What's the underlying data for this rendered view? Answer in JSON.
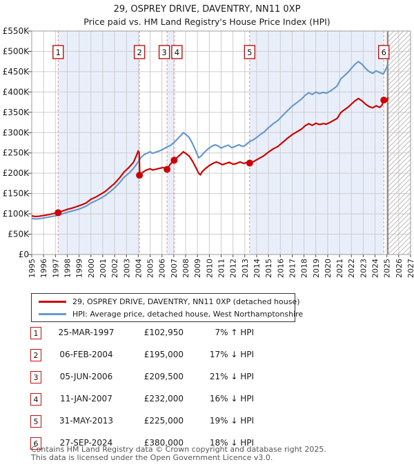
{
  "page": {
    "title": "29, OSPREY DRIVE, DAVENTRY, NN11 0XP",
    "subtitle": "Price paid vs. HM Land Registry's House Price Index (HPI)"
  },
  "chart_data": {
    "type": "line",
    "title": "29, OSPREY DRIVE, DAVENTRY, NN11 0XP",
    "subtitle": "Price paid vs. HM Land Registry's House Price Index (HPI)",
    "x_axis": {
      "tick_years": [
        1995,
        1996,
        1997,
        1998,
        1999,
        2000,
        2001,
        2002,
        2003,
        2004,
        2005,
        2006,
        2007,
        2008,
        2009,
        2010,
        2011,
        2012,
        2013,
        2014,
        2015,
        2016,
        2017,
        2018,
        2019,
        2020,
        2021,
        2022,
        2023,
        2024,
        2025,
        2026,
        2027
      ],
      "range": [
        1995,
        2027
      ]
    },
    "y_axis": {
      "unit": "GBP",
      "range_thousands": [
        0,
        550
      ],
      "ticks": [
        {
          "v": 0,
          "label": "£0"
        },
        {
          "v": 50,
          "label": "£50K"
        },
        {
          "v": 100,
          "label": "£100K"
        },
        {
          "v": 150,
          "label": "£150K"
        },
        {
          "v": 200,
          "label": "£200K"
        },
        {
          "v": 250,
          "label": "£250K"
        },
        {
          "v": 300,
          "label": "£300K"
        },
        {
          "v": 350,
          "label": "£350K"
        },
        {
          "v": 400,
          "label": "£400K"
        },
        {
          "v": 450,
          "label": "£450K"
        },
        {
          "v": 500,
          "label": "£500K"
        },
        {
          "v": 550,
          "label": "£550K"
        }
      ]
    },
    "series": [
      {
        "id": "hpi",
        "label": "HPI: Average price, detached house, West Northamptonshire",
        "color": "#6699cc",
        "points_year_gbpk": [
          [
            1995.0,
            89
          ],
          [
            1995.3,
            87.5
          ],
          [
            1995.6,
            88
          ],
          [
            1996.0,
            90
          ],
          [
            1996.4,
            92
          ],
          [
            1996.8,
            94
          ],
          [
            1997.23,
            96.2
          ],
          [
            1997.6,
            100
          ],
          [
            1998.0,
            104
          ],
          [
            1998.4,
            107
          ],
          [
            1998.8,
            110
          ],
          [
            1999.2,
            114
          ],
          [
            1999.6,
            119
          ],
          [
            2000.0,
            127
          ],
          [
            2000.4,
            132
          ],
          [
            2000.8,
            138
          ],
          [
            2001.2,
            145
          ],
          [
            2001.6,
            154
          ],
          [
            2002.0,
            164
          ],
          [
            2002.4,
            176
          ],
          [
            2002.8,
            190
          ],
          [
            2003.2,
            200
          ],
          [
            2003.6,
            212
          ],
          [
            2004.0,
            228
          ],
          [
            2004.2,
            238
          ],
          [
            2004.5,
            246
          ],
          [
            2004.8,
            250
          ],
          [
            2005.0,
            253
          ],
          [
            2005.2,
            249
          ],
          [
            2005.5,
            252
          ],
          [
            2005.8,
            255
          ],
          [
            2006.1,
            259
          ],
          [
            2006.43,
            265
          ],
          [
            2006.7,
            268
          ],
          [
            2007.03,
            276
          ],
          [
            2007.3,
            284
          ],
          [
            2007.6,
            293
          ],
          [
            2007.8,
            300
          ],
          [
            2008.0,
            296
          ],
          [
            2008.3,
            288
          ],
          [
            2008.6,
            272
          ],
          [
            2008.9,
            252
          ],
          [
            2009.1,
            238
          ],
          [
            2009.3,
            242
          ],
          [
            2009.6,
            252
          ],
          [
            2009.9,
            260
          ],
          [
            2010.2,
            266
          ],
          [
            2010.5,
            270
          ],
          [
            2010.8,
            266
          ],
          [
            2011.0,
            262
          ],
          [
            2011.3,
            266
          ],
          [
            2011.6,
            269
          ],
          [
            2011.9,
            263
          ],
          [
            2012.2,
            266
          ],
          [
            2012.5,
            270
          ],
          [
            2012.8,
            266
          ],
          [
            2013.0,
            268
          ],
          [
            2013.41,
            278
          ],
          [
            2013.7,
            282
          ],
          [
            2014.0,
            288
          ],
          [
            2014.3,
            295
          ],
          [
            2014.6,
            301
          ],
          [
            2015.0,
            312
          ],
          [
            2015.4,
            322
          ],
          [
            2015.8,
            330
          ],
          [
            2016.2,
            342
          ],
          [
            2016.6,
            354
          ],
          [
            2017.0,
            365
          ],
          [
            2017.4,
            374
          ],
          [
            2017.8,
            383
          ],
          [
            2018.1,
            392
          ],
          [
            2018.4,
            398
          ],
          [
            2018.7,
            394
          ],
          [
            2019.0,
            400
          ],
          [
            2019.3,
            396
          ],
          [
            2019.6,
            399
          ],
          [
            2019.9,
            397
          ],
          [
            2020.2,
            402
          ],
          [
            2020.5,
            408
          ],
          [
            2020.8,
            415
          ],
          [
            2021.1,
            432
          ],
          [
            2021.4,
            440
          ],
          [
            2021.7,
            448
          ],
          [
            2022.0,
            458
          ],
          [
            2022.3,
            468
          ],
          [
            2022.6,
            475
          ],
          [
            2022.9,
            468
          ],
          [
            2023.2,
            458
          ],
          [
            2023.5,
            450
          ],
          [
            2023.8,
            446
          ],
          [
            2024.1,
            452
          ],
          [
            2024.4,
            448
          ],
          [
            2024.7,
            444
          ],
          [
            2024.9,
            455
          ],
          [
            2025.0,
            462
          ],
          [
            2025.1,
            470
          ]
        ]
      },
      {
        "id": "price",
        "label": "29, OSPREY DRIVE, DAVENTRY, NN11 0XP (detached house)",
        "color": "#cc0000",
        "points_year_gbpk": [
          [
            1995.0,
            95
          ],
          [
            1995.3,
            93.5
          ],
          [
            1995.6,
            94
          ],
          [
            1996.0,
            96
          ],
          [
            1996.4,
            98
          ],
          [
            1996.8,
            100.5
          ],
          [
            1997.23,
            102.95
          ],
          [
            1997.6,
            107
          ],
          [
            1998.0,
            111
          ],
          [
            1998.4,
            114
          ],
          [
            1998.8,
            118
          ],
          [
            1999.2,
            122
          ],
          [
            1999.6,
            127
          ],
          [
            2000.0,
            136
          ],
          [
            2000.4,
            141
          ],
          [
            2000.8,
            148
          ],
          [
            2001.2,
            155
          ],
          [
            2001.6,
            165
          ],
          [
            2002.0,
            175
          ],
          [
            2002.4,
            188
          ],
          [
            2002.8,
            203
          ],
          [
            2003.2,
            214
          ],
          [
            2003.6,
            227
          ],
          [
            2003.85,
            244
          ],
          [
            2004.0,
            255
          ],
          [
            2004.08,
            249
          ],
          [
            2004.12,
            195
          ],
          [
            2004.4,
            203
          ],
          [
            2004.7,
            208
          ],
          [
            2005.0,
            211
          ],
          [
            2005.2,
            208
          ],
          [
            2005.5,
            210
          ],
          [
            2005.8,
            212
          ],
          [
            2006.1,
            214
          ],
          [
            2006.43,
            209.5
          ],
          [
            2006.7,
            222
          ],
          [
            2007.03,
            232
          ],
          [
            2007.3,
            239
          ],
          [
            2007.6,
            247
          ],
          [
            2007.8,
            253
          ],
          [
            2008.0,
            249
          ],
          [
            2008.3,
            242
          ],
          [
            2008.6,
            229
          ],
          [
            2008.9,
            212
          ],
          [
            2009.1,
            200
          ],
          [
            2009.25,
            196
          ],
          [
            2009.4,
            204
          ],
          [
            2009.7,
            212
          ],
          [
            2010.0,
            219
          ],
          [
            2010.3,
            224
          ],
          [
            2010.6,
            228
          ],
          [
            2010.9,
            224
          ],
          [
            2011.1,
            221
          ],
          [
            2011.4,
            224
          ],
          [
            2011.7,
            227
          ],
          [
            2012.0,
            222
          ],
          [
            2012.3,
            224
          ],
          [
            2012.6,
            228
          ],
          [
            2012.9,
            224
          ],
          [
            2013.1,
            226
          ],
          [
            2013.41,
            225
          ],
          [
            2013.7,
            228
          ],
          [
            2014.0,
            233
          ],
          [
            2014.3,
            238
          ],
          [
            2014.6,
            243
          ],
          [
            2015.0,
            252
          ],
          [
            2015.4,
            260
          ],
          [
            2015.8,
            266
          ],
          [
            2016.2,
            276
          ],
          [
            2016.6,
            286
          ],
          [
            2017.0,
            295
          ],
          [
            2017.4,
            302
          ],
          [
            2017.8,
            309
          ],
          [
            2018.1,
            317
          ],
          [
            2018.4,
            322
          ],
          [
            2018.7,
            318
          ],
          [
            2019.0,
            323
          ],
          [
            2019.3,
            320
          ],
          [
            2019.6,
            322
          ],
          [
            2019.9,
            321
          ],
          [
            2020.2,
            325
          ],
          [
            2020.5,
            330
          ],
          [
            2020.8,
            335
          ],
          [
            2021.1,
            349
          ],
          [
            2021.4,
            356
          ],
          [
            2021.7,
            362
          ],
          [
            2022.0,
            370
          ],
          [
            2022.3,
            378
          ],
          [
            2022.6,
            384
          ],
          [
            2022.9,
            378
          ],
          [
            2023.2,
            370
          ],
          [
            2023.5,
            364
          ],
          [
            2023.8,
            361
          ],
          [
            2024.1,
            366
          ],
          [
            2024.4,
            362
          ],
          [
            2024.6,
            368
          ],
          [
            2024.74,
            380
          ],
          [
            2024.85,
            375
          ],
          [
            2025.0,
            378
          ],
          [
            2025.1,
            387
          ]
        ]
      }
    ],
    "sale_markers": [
      {
        "n": "1",
        "year": 1997.23,
        "price_k": 102.95
      },
      {
        "n": "2",
        "year": 2004.1,
        "price_k": 195
      },
      {
        "n": "3",
        "year": 2006.43,
        "price_k": 209.5
      },
      {
        "n": "4",
        "year": 2007.03,
        "price_k": 232
      },
      {
        "n": "5",
        "year": 2013.41,
        "price_k": 225
      },
      {
        "n": "6",
        "year": 2024.74,
        "price_k": 380
      }
    ],
    "ownership_bands_years": [
      [
        1997.23,
        2004.1
      ],
      [
        2006.43,
        2007.03
      ],
      [
        2013.41,
        2024.74
      ]
    ],
    "future_hatch_from_year": 2025.08,
    "colors": {
      "price_line": "#cc0000",
      "hpi_line": "#6699cc",
      "event_dashed_line": "#ee8888",
      "ownership_band": "#e9effa",
      "grid": "#cccccc",
      "plot_border": "#999999",
      "hatch": "#bbbbbb",
      "event_box_border": "#bb1111"
    },
    "legend_position": "below-chart",
    "grid": true
  },
  "table": {
    "rows": [
      {
        "n": "1",
        "date": "25-MAR-1997",
        "price": "£102,950",
        "hpi": "7% ↑ HPI"
      },
      {
        "n": "2",
        "date": "06-FEB-2004",
        "price": "£195,000",
        "hpi": "17% ↓ HPI"
      },
      {
        "n": "3",
        "date": "05-JUN-2006",
        "price": "£209,500",
        "hpi": "21% ↓ HPI"
      },
      {
        "n": "4",
        "date": "11-JAN-2007",
        "price": "£232,000",
        "hpi": "16% ↓ HPI"
      },
      {
        "n": "5",
        "date": "31-MAY-2013",
        "price": "£225,000",
        "hpi": "19% ↓ HPI"
      },
      {
        "n": "6",
        "date": "27-SEP-2024",
        "price": "£380,000",
        "hpi": "18% ↓ HPI"
      }
    ]
  },
  "footer": {
    "line1": "Contains HM Land Registry data © Crown copyright and database right 2025.",
    "line2": "This data is licensed under the Open Government Licence v3.0."
  }
}
